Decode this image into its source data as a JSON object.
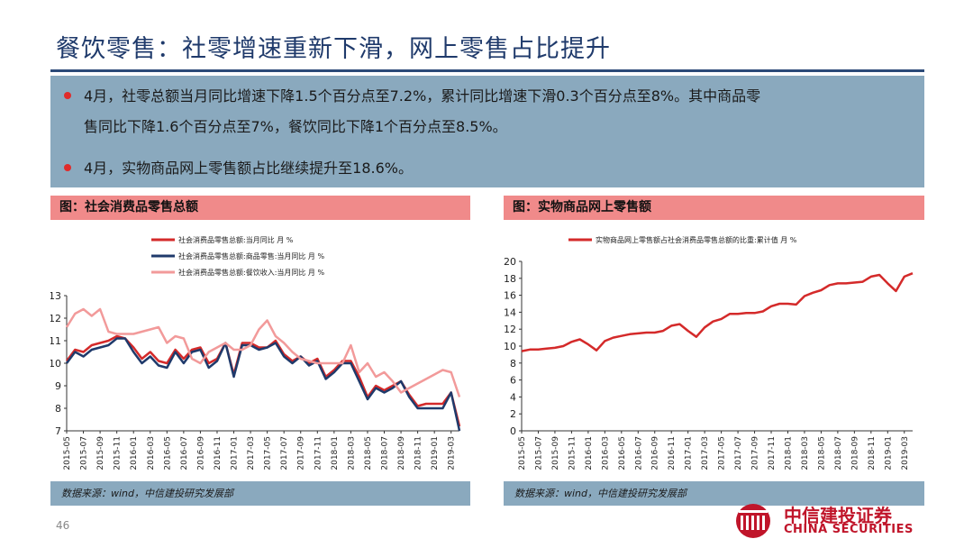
{
  "page": {
    "title": "餐饮零售：社零增速重新下滑，网上零售占比提升",
    "bullets": [
      {
        "line1": "4月，社零总额当月同比增速下降1.5个百分点至7.2%，累计同比增速下滑0.3个百分点至8%。其中商品零",
        "line2": "售同比下降1.6个百分点至7%，餐饮同比下降1个百分点至8.5%。"
      },
      {
        "line1": "4月，实物商品网上零售额占比继续提升至18.6%。"
      }
    ],
    "page_number": "46",
    "logo": {
      "cn": "中信建投证券",
      "en": "CHINA SECURITIES"
    },
    "colors": {
      "accent_red": "#e02b2b",
      "title_blue": "#1f3a6b",
      "panel_blue": "#8aa9be",
      "panel_pink": "#f08a8a"
    }
  },
  "left_panel": {
    "header": "图：社会消费品零售总额",
    "source": "数据来源：wind，中信建投研究发展部"
  },
  "right_panel": {
    "header": "图：实物商品网上零售额",
    "source": "数据来源：wind，中信建投研究发展部"
  },
  "chart_data": [
    {
      "type": "line",
      "x": [
        "2015-05",
        "2015-06",
        "2015-07",
        "2015-08",
        "2015-09",
        "2015-10",
        "2015-11",
        "2015-12",
        "2016-01",
        "2016-02",
        "2016-03",
        "2016-04",
        "2016-05",
        "2016-06",
        "2016-07",
        "2016-08",
        "2016-09",
        "2016-10",
        "2016-11",
        "2016-12",
        "2017-01",
        "2017-02",
        "2017-03",
        "2017-04",
        "2017-05",
        "2017-06",
        "2017-07",
        "2017-08",
        "2017-09",
        "2017-10",
        "2017-11",
        "2017-12",
        "2018-01",
        "2018-02",
        "2018-03",
        "2018-04",
        "2018-05",
        "2018-06",
        "2018-07",
        "2018-08",
        "2018-09",
        "2018-10",
        "2018-11",
        "2018-12",
        "2019-01",
        "2019-02",
        "2019-03",
        "2019-04"
      ],
      "tick_labels": [
        "2015-05",
        "2015-07",
        "2015-09",
        "2015-11",
        "2016-01",
        "2016-03",
        "2016-05",
        "2016-07",
        "2016-09",
        "2016-11",
        "2017-01",
        "2017-03",
        "2017-05",
        "2017-07",
        "2017-09",
        "2017-11",
        "2018-01",
        "2018-03",
        "2018-05",
        "2018-07",
        "2018-09",
        "2018-11",
        "2019-01",
        "2019-03"
      ],
      "ylim": [
        7,
        13
      ],
      "yticks": [
        7,
        8,
        9,
        10,
        11,
        12,
        13
      ],
      "legend_position": "top",
      "series": [
        {
          "name": "社会消费品零售总额:当月同比 月 %",
          "color": "#d42a2a",
          "values": [
            10.1,
            10.6,
            10.5,
            10.8,
            10.9,
            11.0,
            11.2,
            11.1,
            10.7,
            10.2,
            10.5,
            10.1,
            10.0,
            10.6,
            10.2,
            10.6,
            10.7,
            10.0,
            10.2,
            10.9,
            9.5,
            10.9,
            10.9,
            10.7,
            10.7,
            11.0,
            10.4,
            10.1,
            10.3,
            10.0,
            10.2,
            9.4,
            9.7,
            10.1,
            10.1,
            9.4,
            8.5,
            9.0,
            8.8,
            9.0,
            9.2,
            8.6,
            8.1,
            8.2,
            8.2,
            8.2,
            8.7,
            7.2
          ]
        },
        {
          "name": "社会消费品零售总额:商品零售:当月同比 月 %",
          "color": "#1f3a6b",
          "values": [
            10.0,
            10.5,
            10.3,
            10.6,
            10.7,
            10.8,
            11.1,
            11.1,
            10.5,
            10.0,
            10.3,
            9.9,
            9.8,
            10.5,
            10.0,
            10.5,
            10.6,
            9.8,
            10.1,
            10.9,
            9.4,
            10.8,
            10.8,
            10.6,
            10.7,
            10.9,
            10.3,
            10.0,
            10.3,
            9.9,
            10.1,
            9.3,
            9.6,
            10.0,
            10.0,
            9.2,
            8.4,
            8.9,
            8.7,
            8.9,
            9.2,
            8.5,
            8.0,
            8.0,
            8.0,
            8.0,
            8.7,
            7.0
          ]
        },
        {
          "name": "社会消费品零售总额:餐饮收入:当月同比 月 %",
          "color": "#f29a9a",
          "values": [
            11.6,
            12.2,
            12.4,
            12.1,
            12.4,
            11.4,
            11.3,
            11.3,
            11.3,
            11.4,
            11.5,
            11.6,
            10.9,
            11.2,
            11.1,
            10.2,
            10.0,
            10.5,
            10.7,
            10.9,
            10.6,
            10.6,
            10.8,
            11.5,
            11.9,
            11.2,
            10.9,
            10.5,
            10.2,
            10.1,
            10.0,
            10.0,
            10.0,
            10.0,
            10.8,
            9.6,
            10.0,
            9.4,
            9.6,
            9.2,
            8.7,
            8.9,
            9.1,
            9.3,
            9.5,
            9.7,
            9.6,
            8.5
          ]
        }
      ]
    },
    {
      "type": "line",
      "x": [
        "2015-05",
        "2015-06",
        "2015-07",
        "2015-08",
        "2015-09",
        "2015-10",
        "2015-11",
        "2015-12",
        "2016-01",
        "2016-02",
        "2016-03",
        "2016-04",
        "2016-05",
        "2016-06",
        "2016-07",
        "2016-08",
        "2016-09",
        "2016-10",
        "2016-11",
        "2016-12",
        "2017-01",
        "2017-02",
        "2017-03",
        "2017-04",
        "2017-05",
        "2017-06",
        "2017-07",
        "2017-08",
        "2017-09",
        "2017-10",
        "2017-11",
        "2017-12",
        "2018-01",
        "2018-02",
        "2018-03",
        "2018-04",
        "2018-05",
        "2018-06",
        "2018-07",
        "2018-08",
        "2018-09",
        "2018-10",
        "2018-11",
        "2018-12",
        "2019-01",
        "2019-02",
        "2019-03",
        "2019-04"
      ],
      "tick_labels": [
        "2015-05",
        "2015-07",
        "2015-09",
        "2015-11",
        "2016-01",
        "2016-03",
        "2016-05",
        "2016-07",
        "2016-09",
        "2016-11",
        "2017-01",
        "2017-03",
        "2017-05",
        "2017-07",
        "2017-09",
        "2017-11",
        "2018-01",
        "2018-03",
        "2018-05",
        "2018-07",
        "2018-09",
        "2018-11",
        "2019-01",
        "2019-03"
      ],
      "ylim": [
        0,
        20
      ],
      "yticks": [
        0,
        2,
        4,
        6,
        8,
        10,
        12,
        14,
        16,
        18,
        20
      ],
      "legend_position": "top",
      "series": [
        {
          "name": "实物商品网上零售额占社会消费品零售总额的比重:累计值 月 %",
          "color": "#d42a2a",
          "values": [
            9.4,
            9.6,
            9.6,
            9.7,
            9.8,
            10.0,
            10.5,
            10.8,
            10.2,
            9.5,
            10.6,
            11.0,
            11.2,
            11.4,
            11.5,
            11.6,
            11.6,
            11.8,
            12.4,
            12.6,
            11.8,
            11.1,
            12.2,
            12.9,
            13.2,
            13.8,
            13.8,
            13.9,
            13.9,
            14.1,
            14.7,
            15.0,
            15.0,
            14.9,
            15.9,
            16.3,
            16.6,
            17.2,
            17.4,
            17.4,
            17.5,
            17.6,
            18.2,
            18.4,
            17.4,
            16.5,
            18.2,
            18.6
          ]
        }
      ]
    }
  ]
}
